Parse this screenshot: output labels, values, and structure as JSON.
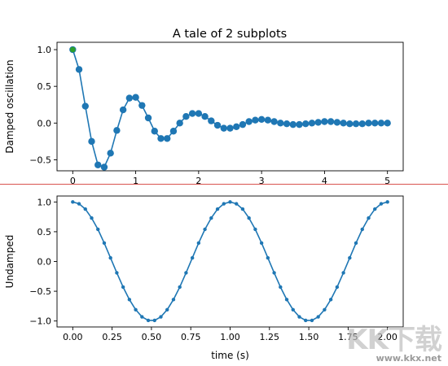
{
  "chart_data": [
    {
      "type": "line",
      "title": "A tale of 2 subplots",
      "xlabel": "",
      "ylabel": "Damped oscillation",
      "xlim": [
        -0.25,
        5.25
      ],
      "ylim": [
        -0.65,
        1.1
      ],
      "x_ticks": [
        "0",
        "1",
        "2",
        "3",
        "4",
        "5"
      ],
      "y_ticks": [
        "−0.5",
        "0.0",
        "0.5",
        "1.0"
      ],
      "marker": "o",
      "grid": false,
      "series": [
        {
          "x": [
            0.0,
            0.1,
            0.2,
            0.3,
            0.4,
            0.5,
            0.6,
            0.7,
            0.8,
            0.9,
            1.0,
            1.1,
            1.2,
            1.3,
            1.4,
            1.5,
            1.6,
            1.7,
            1.8,
            1.9,
            2.0,
            2.1,
            2.2,
            2.3,
            2.4,
            2.5,
            2.6,
            2.7,
            2.8,
            2.9,
            3.0,
            3.1,
            3.2,
            3.3,
            3.4,
            3.5,
            3.6,
            3.7,
            3.8,
            3.9,
            4.0,
            4.1,
            4.2,
            4.3,
            4.4,
            4.5,
            4.6,
            4.7,
            4.8,
            4.9,
            5.0
          ],
          "y": [
            1.0,
            0.73,
            0.23,
            -0.25,
            -0.57,
            -0.6,
            -0.41,
            -0.1,
            0.18,
            0.34,
            0.35,
            0.24,
            0.07,
            -0.11,
            -0.21,
            -0.21,
            -0.11,
            0.0,
            0.09,
            0.13,
            0.13,
            0.09,
            0.03,
            -0.03,
            -0.07,
            -0.07,
            -0.05,
            -0.02,
            0.02,
            0.04,
            0.05,
            0.04,
            0.02,
            0.0,
            -0.01,
            -0.02,
            -0.02,
            -0.01,
            0.0,
            0.01,
            0.02,
            0.02,
            0.01,
            0.0,
            -0.01,
            -0.01,
            -0.01,
            0.0,
            0.0,
            0.0,
            0.0
          ]
        }
      ]
    },
    {
      "type": "line",
      "title": "",
      "xlabel": "time (s)",
      "ylabel": "Undamped",
      "xlim": [
        -0.1,
        2.1
      ],
      "ylim": [
        -1.1,
        1.1
      ],
      "x_ticks": [
        "0.00",
        "0.25",
        "0.50",
        "0.75",
        "1.00",
        "1.25",
        "1.50",
        "1.75",
        "2.00"
      ],
      "y_ticks": [
        "−1.0",
        "−0.5",
        "0.0",
        "0.5",
        "1.0"
      ],
      "marker": ".",
      "grid": false,
      "series": [
        {
          "x": [
            0.0,
            0.04,
            0.08,
            0.12,
            0.16,
            0.2,
            0.24,
            0.28,
            0.32,
            0.36,
            0.4,
            0.44,
            0.48,
            0.52,
            0.56,
            0.6,
            0.64,
            0.68,
            0.72,
            0.76,
            0.8,
            0.84,
            0.88,
            0.92,
            0.96,
            1.0,
            1.04,
            1.08,
            1.12,
            1.16,
            1.2,
            1.24,
            1.28,
            1.32,
            1.36,
            1.4,
            1.44,
            1.48,
            1.52,
            1.56,
            1.6,
            1.64,
            1.68,
            1.72,
            1.76,
            1.8,
            1.84,
            1.88,
            1.92,
            1.96,
            2.0
          ],
          "y": [
            1.0,
            0.97,
            0.88,
            0.73,
            0.54,
            0.31,
            0.06,
            -0.19,
            -0.43,
            -0.64,
            -0.81,
            -0.93,
            -0.99,
            -0.99,
            -0.93,
            -0.81,
            -0.64,
            -0.43,
            -0.19,
            0.06,
            0.31,
            0.54,
            0.73,
            0.88,
            0.97,
            1.0,
            0.97,
            0.88,
            0.73,
            0.54,
            0.31,
            0.06,
            -0.19,
            -0.43,
            -0.64,
            -0.81,
            -0.93,
            -0.99,
            -0.99,
            -0.93,
            -0.81,
            -0.64,
            -0.43,
            -0.19,
            0.06,
            0.31,
            0.54,
            0.73,
            0.88,
            0.97,
            1.0
          ]
        }
      ]
    }
  ],
  "colors": {
    "line": "#1f77b4",
    "first_point": "#2ca02c",
    "separator": "#d9534f"
  },
  "watermark": {
    "main": "KK下载",
    "url": "www.kkx.net"
  }
}
